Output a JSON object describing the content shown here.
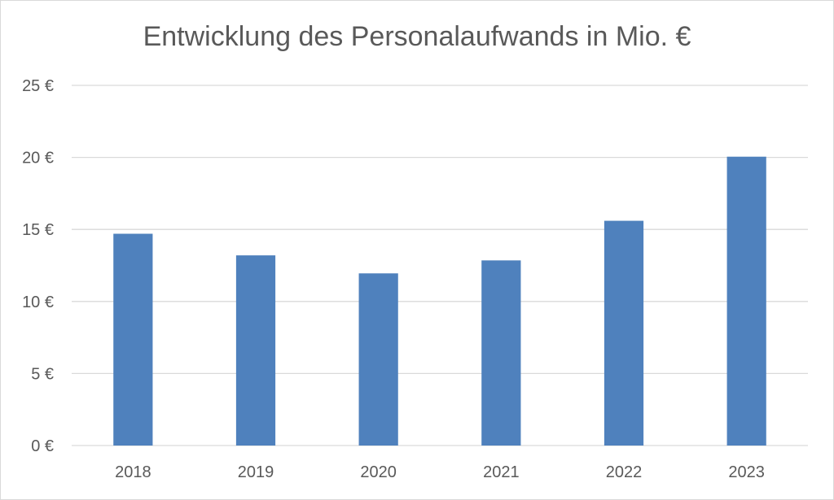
{
  "chart_data": {
    "type": "bar",
    "title": "Entwicklung des Personalaufwands in Mio. €",
    "xlabel": "",
    "ylabel": "",
    "categories": [
      "2018",
      "2019",
      "2020",
      "2021",
      "2022",
      "2023"
    ],
    "values": [
      14.7,
      13.2,
      11.95,
      12.85,
      15.6,
      20.05
    ],
    "ylim": [
      0,
      25
    ],
    "yticks": [
      0,
      5,
      10,
      15,
      20,
      25
    ],
    "ytick_suffix": " €",
    "grid": true,
    "colors": {
      "bar": "#4f81bd",
      "grid": "#d9d9d9",
      "text": "#595959"
    }
  }
}
